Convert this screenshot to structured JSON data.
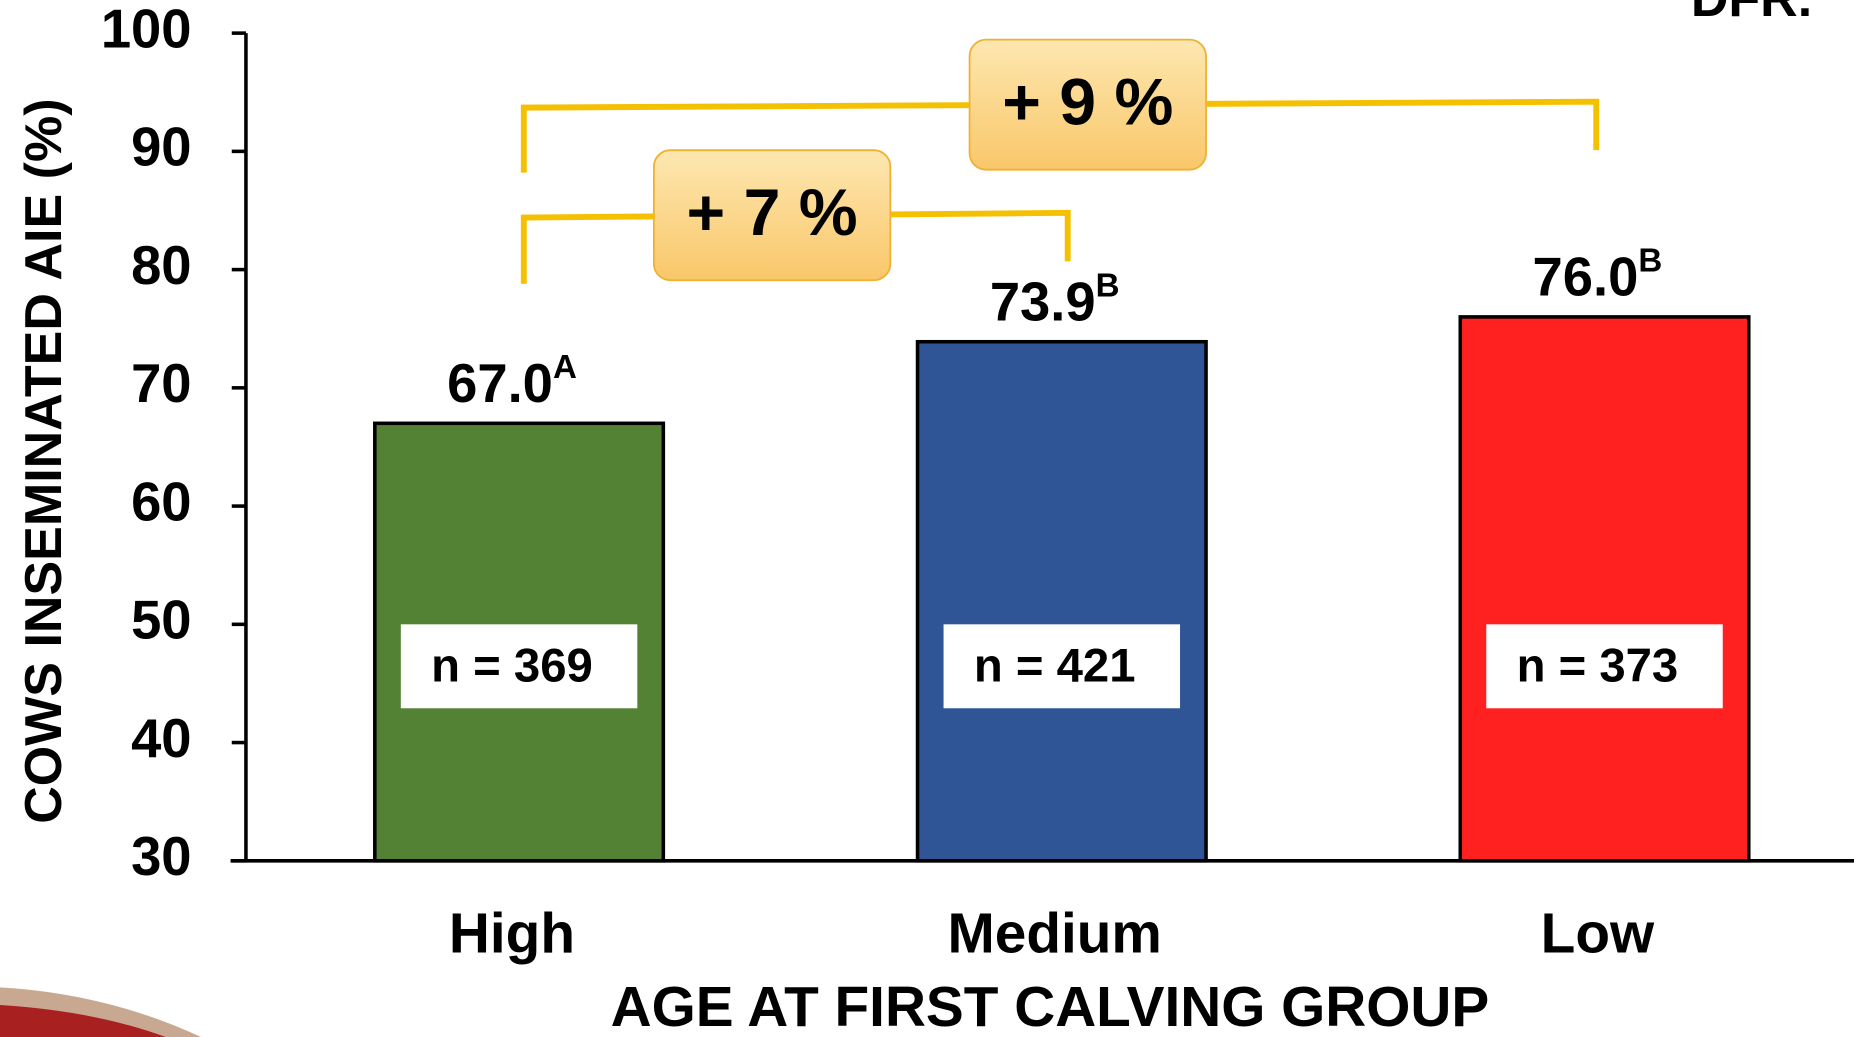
{
  "chart_data": {
    "type": "bar",
    "corner_text": "DFR.",
    "y_axis_label": "COWS INSEMINATED AIE (%)",
    "x_axis_label": "AGE AT FIRST CALVING GROUP",
    "categories": [
      "High",
      "Medium",
      "Low"
    ],
    "values": [
      67.0,
      73.9,
      76.0
    ],
    "value_labels": [
      "67.0",
      "73.9",
      "76.0"
    ],
    "significance_letters": [
      "A",
      "B",
      "B"
    ],
    "sample_labels": [
      "n = 369",
      "n = 421",
      "n = 373"
    ],
    "colors": [
      "#548235",
      "#2f5597",
      "#ff2020"
    ],
    "ylim": [
      30,
      100
    ],
    "yticks": [
      30,
      40,
      50,
      60,
      70,
      80,
      90,
      100
    ],
    "annotations": [
      {
        "text": "+ 7 %"
      },
      {
        "text": "+ 9 %"
      }
    ]
  }
}
